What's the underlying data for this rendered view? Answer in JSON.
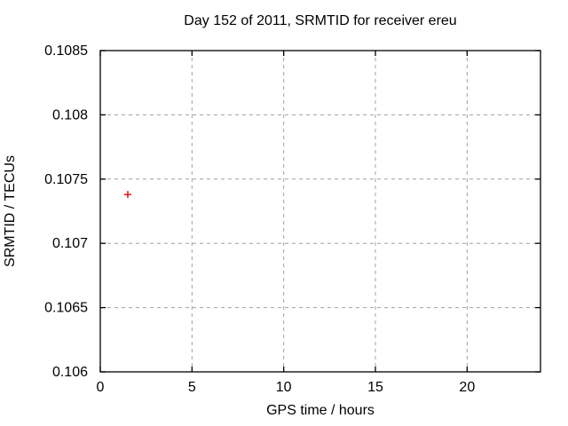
{
  "chart_data": {
    "type": "scatter",
    "title": "Day 152 of 2011, SRMTID for receiver ereu",
    "xlabel": "GPS time / hours",
    "ylabel": "SRMTID / TECUs",
    "xlim": [
      0,
      24
    ],
    "ylim": [
      0.106,
      0.1085
    ],
    "xticks": [
      0,
      5,
      10,
      15,
      20
    ],
    "xtick_labels": [
      "0",
      "5",
      "10",
      "15",
      "20"
    ],
    "yticks": [
      0.106,
      0.1065,
      0.107,
      0.1075,
      0.108,
      0.1085
    ],
    "ytick_labels": [
      "0.106",
      "0.1065",
      "0.107",
      "0.1075",
      "0.108",
      "0.1085"
    ],
    "grid": true,
    "legend": "none",
    "marker": "plus",
    "marker_color": "#e60000",
    "points": [
      {
        "x": 1.5,
        "y": 0.10738
      }
    ]
  },
  "colors": {
    "background": "#ffffff",
    "axis": "#000000",
    "grid": "#a0a0a0",
    "text": "#000000",
    "marker": "#e60000"
  }
}
